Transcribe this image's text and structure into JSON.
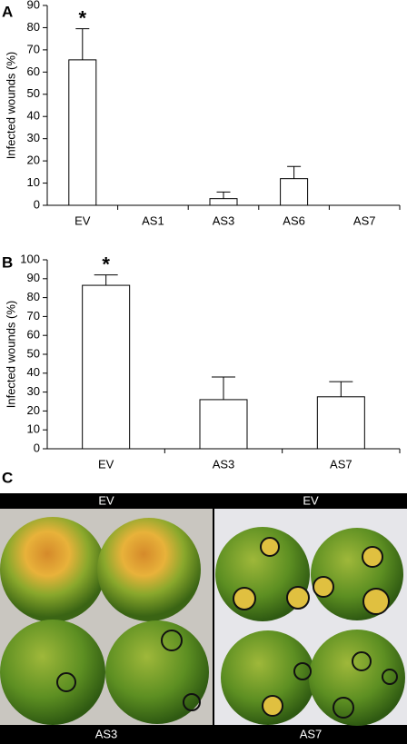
{
  "panels": [
    "A",
    "B",
    "C"
  ],
  "chart_data": [
    {
      "type": "bar",
      "ylabel": "Infected wounds (%)",
      "categories": [
        "EV",
        "AS1",
        "AS3",
        "AS6",
        "AS7"
      ],
      "values": [
        65.5,
        0,
        3,
        12,
        0
      ],
      "errors": [
        14,
        null,
        3,
        5.5,
        null
      ],
      "color": "#ffffff",
      "ylim": [
        0,
        90
      ],
      "yticks": [
        0,
        10,
        20,
        30,
        40,
        50,
        60,
        70,
        80,
        90
      ],
      "annotations": [
        {
          "label": "*",
          "x": "EV"
        }
      ]
    },
    {
      "type": "bar",
      "ylabel": "Infected wounds (%)",
      "categories": [
        "EV",
        "AS3",
        "AS7"
      ],
      "values": [
        86.5,
        26,
        27.5
      ],
      "errors": [
        5.5,
        12,
        8
      ],
      "color": "#ffffff",
      "ylim": [
        0,
        100
      ],
      "yticks": [
        0,
        10,
        20,
        30,
        40,
        50,
        60,
        70,
        80,
        90,
        100
      ],
      "annotations": [
        {
          "label": "*",
          "x": "EV"
        }
      ]
    }
  ],
  "photo": {
    "labels": [
      "EV",
      "EV",
      "AS3",
      "AS7"
    ]
  }
}
